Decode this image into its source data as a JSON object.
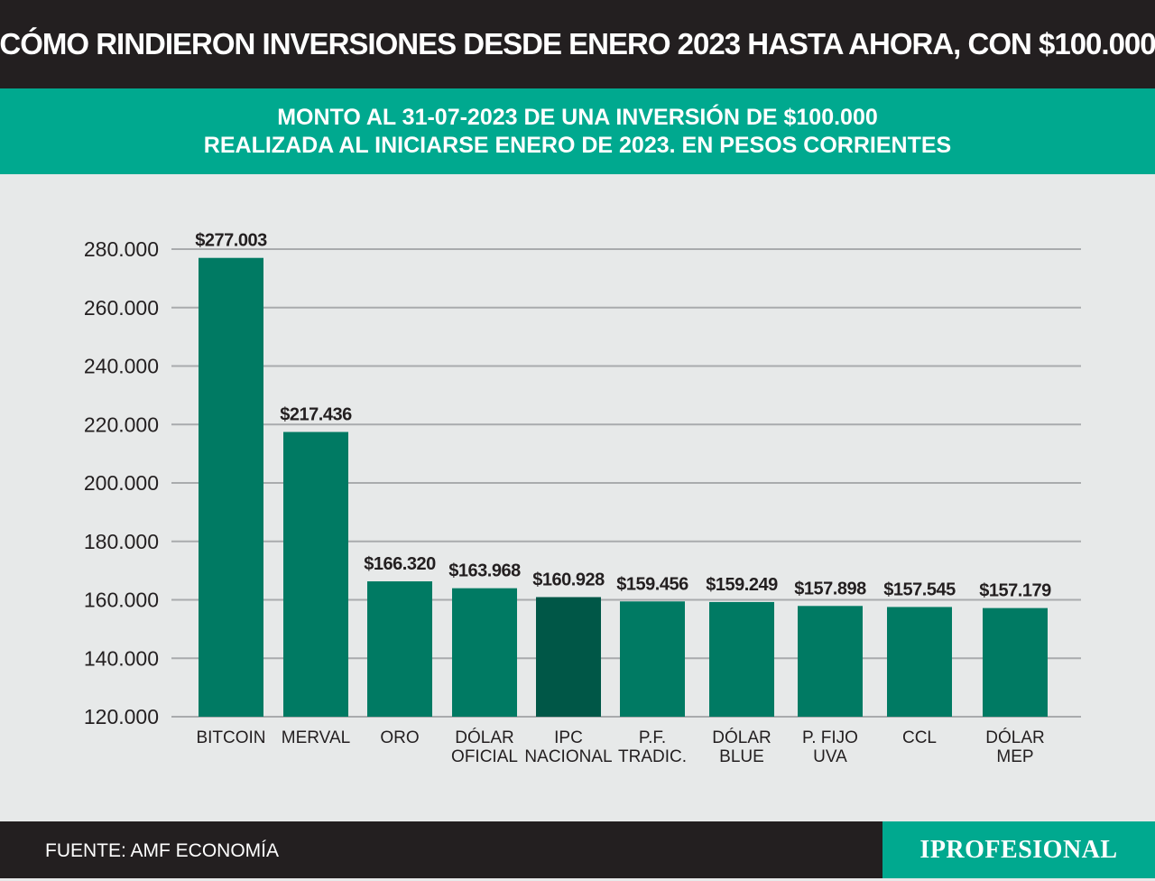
{
  "header": {
    "title": "CÓMO RINDIERON INVERSIONES DESDE ENERO 2023 HASTA AHORA, CON $100.000"
  },
  "subheader": {
    "line1": "MONTO AL 31-07-2023 DE UNA INVERSIÓN DE $100.000",
    "line2": "REALIZADA AL INICIARSE ENERO DE 2023. EN PESOS CORRIENTES"
  },
  "footer": {
    "source": "FUENTE: AMF ECONOMÍA",
    "brand": "IPROFESIONAL"
  },
  "colors": {
    "bar": "#007a63",
    "bar_highlight": "#005747",
    "grid": "#a9abad",
    "accent": "#00a98f",
    "dark": "#231f20"
  },
  "chart_data": {
    "type": "bar",
    "title": "MONTO AL 31-07-2023 DE UNA INVERSIÓN DE $100.000 REALIZADA AL INICIARSE ENERO DE 2023. EN PESOS CORRIENTES",
    "xlabel": "",
    "ylabel": "",
    "ylim": [
      120000,
      280000
    ],
    "grid": true,
    "yticks": [
      120000,
      140000,
      160000,
      180000,
      200000,
      220000,
      240000,
      260000,
      280000
    ],
    "ytick_labels": [
      "120.000",
      "140.000",
      "160.000",
      "180.000",
      "200.000",
      "220.000",
      "240.000",
      "260.000",
      "280.000"
    ],
    "categories": [
      [
        "BITCOIN"
      ],
      [
        "MERVAL"
      ],
      [
        "ORO"
      ],
      [
        "DÓLAR",
        "OFICIAL"
      ],
      [
        "IPC",
        "NACIONAL"
      ],
      [
        "P.F.",
        "TRADIC."
      ],
      [
        "DÓLAR",
        "BLUE"
      ],
      [
        "P. FIJO",
        "UVA"
      ],
      [
        "CCL"
      ],
      [
        "DÓLAR",
        "MEP"
      ]
    ],
    "values": [
      277003,
      217436,
      166320,
      163968,
      160928,
      159456,
      159249,
      157898,
      157545,
      157179
    ],
    "data_labels": [
      "$277.003",
      "$217.436",
      "$166.320",
      "$163.968",
      "$160.928",
      "$159.456",
      "$159.249",
      "$157.898",
      "$157.545",
      "$157.179"
    ],
    "highlight_index": 4
  }
}
